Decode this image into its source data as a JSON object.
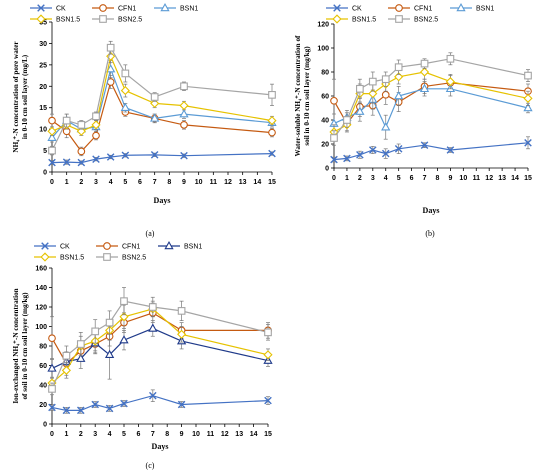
{
  "figure": {
    "panels": [
      "a",
      "b",
      "c"
    ],
    "panel_labels": [
      "(a)",
      "(b)",
      "(c)"
    ]
  },
  "chart_data": [
    {
      "id": "a",
      "type": "line",
      "panel_label": "(a)",
      "ylabel_lines": [
        "NH₄⁺-N concentration of pore water",
        "in 0-10 cm soil layer (mg/L)"
      ],
      "xlabel": "Days",
      "xlim": [
        0,
        15
      ],
      "ylim": [
        0,
        35
      ],
      "y_ticks": [
        0,
        5,
        10,
        15,
        20,
        25,
        30,
        35
      ],
      "x_ticks": [
        0,
        1,
        2,
        3,
        4,
        5,
        6,
        7,
        8,
        9,
        10,
        11,
        12,
        13,
        14,
        15
      ],
      "legend_placement": "top",
      "series": [
        {
          "name": "CK",
          "color": "#4472C4",
          "marker": "x",
          "x": [
            0,
            1,
            2,
            3,
            4,
            5,
            7,
            9,
            15
          ],
          "y": [
            2.2,
            2.3,
            2.2,
            3,
            3.5,
            3.9,
            4,
            3.8,
            4.3
          ],
          "err": [
            0.5,
            0.5,
            0.4,
            0.4,
            0.4,
            0.4,
            0.4,
            0.4,
            0.4
          ]
        },
        {
          "name": "CFN1",
          "color": "#C55A11",
          "marker": "circle",
          "x": [
            0,
            1,
            2,
            3,
            4,
            5,
            7,
            9,
            15
          ],
          "y": [
            12,
            9.5,
            4.8,
            8.5,
            21,
            14,
            12.5,
            11,
            9.2
          ],
          "err": [
            1.5,
            1.5,
            1,
            1,
            1.5,
            1,
            1,
            1,
            1
          ]
        },
        {
          "name": "BSN1",
          "color": "#5B9BD5",
          "marker": "triangle",
          "x": [
            0,
            1,
            2,
            3,
            4,
            5,
            7,
            9,
            15
          ],
          "y": [
            8,
            12,
            10,
            10.5,
            24,
            15,
            12.5,
            13.5,
            11.5
          ],
          "err": [
            1,
            1.5,
            1,
            1,
            2,
            1,
            1,
            1,
            1
          ]
        },
        {
          "name": "BSN1.5",
          "color": "#E6C200",
          "marker": "diamond",
          "x": [
            0,
            1,
            2,
            3,
            4,
            5,
            7,
            9,
            15
          ],
          "y": [
            9.5,
            11,
            9.5,
            11,
            27,
            19,
            16,
            15.5,
            12
          ],
          "err": [
            1,
            1,
            1,
            1,
            1.5,
            1.5,
            1,
            1,
            1
          ]
        },
        {
          "name": "BSN2.5",
          "color": "#A5A5A5",
          "marker": "square",
          "x": [
            0,
            1,
            2,
            3,
            4,
            5,
            7,
            9,
            15
          ],
          "y": [
            5,
            12,
            11,
            13,
            29,
            23,
            17.5,
            20,
            18
          ],
          "err": [
            1,
            1.5,
            1,
            1,
            1.5,
            2,
            1,
            1,
            2.5
          ]
        }
      ]
    },
    {
      "id": "b",
      "type": "line",
      "panel_label": "(b)",
      "ylabel_lines": [
        "Water-soluble NH₄⁺-N concentration of",
        "soil in 0-10 cm soil layer (mg/kg)"
      ],
      "xlabel": "Days",
      "xlim": [
        0,
        15
      ],
      "ylim": [
        0,
        120
      ],
      "y_ticks": [
        0,
        20,
        40,
        60,
        80,
        100,
        120
      ],
      "x_ticks": [
        0,
        1,
        2,
        3,
        4,
        5,
        6,
        7,
        8,
        9,
        10,
        11,
        12,
        13,
        14,
        15
      ],
      "legend_placement": "top",
      "series": [
        {
          "name": "CK",
          "color": "#4472C4",
          "marker": "x",
          "x": [
            0,
            1,
            2,
            3,
            4,
            5,
            7,
            9,
            15
          ],
          "y": [
            7,
            8,
            11,
            15,
            12,
            16,
            19,
            15,
            21
          ],
          "err": [
            2,
            2,
            3,
            3,
            4,
            4,
            2,
            2,
            5
          ]
        },
        {
          "name": "CFN1",
          "color": "#C55A11",
          "marker": "circle",
          "x": [
            0,
            1,
            2,
            3,
            4,
            5,
            7,
            9,
            15
          ],
          "y": [
            56,
            37,
            51,
            52,
            61,
            55,
            68,
            71,
            64
          ],
          "err": [
            18,
            6,
            8,
            8,
            8,
            8,
            6,
            6,
            6
          ]
        },
        {
          "name": "BSN1",
          "color": "#5B9BD5",
          "marker": "triangle",
          "x": [
            0,
            1,
            2,
            3,
            4,
            5,
            7,
            9,
            15
          ],
          "y": [
            37,
            42,
            47,
            57,
            34,
            60,
            66,
            66,
            50
          ],
          "err": [
            8,
            6,
            8,
            8,
            10,
            8,
            6,
            6,
            4
          ]
        },
        {
          "name": "BSN1.5",
          "color": "#E6C200",
          "marker": "diamond",
          "x": [
            0,
            1,
            2,
            3,
            4,
            5,
            7,
            9,
            15
          ],
          "y": [
            30,
            36,
            62,
            62,
            70,
            76,
            80,
            72,
            58
          ],
          "err": [
            6,
            6,
            8,
            8,
            6,
            6,
            6,
            6,
            6
          ]
        },
        {
          "name": "BSN2.5",
          "color": "#A5A5A5",
          "marker": "square",
          "x": [
            0,
            1,
            2,
            3,
            4,
            5,
            7,
            9,
            15
          ],
          "y": [
            25,
            40,
            66,
            72,
            74,
            84,
            87,
            91,
            77
          ],
          "err": [
            6,
            6,
            8,
            8,
            6,
            6,
            4,
            5,
            5
          ]
        }
      ]
    },
    {
      "id": "c",
      "type": "line",
      "panel_label": "(c)",
      "ylabel_lines": [
        "Ion-exchanged NH₄⁺-N concentration",
        "of soil in 0-10 cm soil layer (mg/kg)"
      ],
      "xlabel": "Days",
      "xlim": [
        0,
        15
      ],
      "ylim": [
        0,
        160
      ],
      "y_ticks": [
        0,
        20,
        40,
        60,
        80,
        100,
        120,
        140,
        160
      ],
      "x_ticks": [
        0,
        1,
        2,
        3,
        4,
        5,
        6,
        7,
        8,
        9,
        10,
        11,
        12,
        13,
        14,
        15
      ],
      "legend_placement": "top",
      "series": [
        {
          "name": "CK",
          "color": "#4472C4",
          "marker": "x",
          "x": [
            0,
            1,
            2,
            3,
            4,
            5,
            7,
            9,
            15
          ],
          "y": [
            17,
            14,
            14,
            20,
            16,
            21,
            29,
            20,
            24
          ],
          "err": [
            3,
            3,
            3,
            3,
            3,
            3,
            6,
            3,
            4
          ]
        },
        {
          "name": "CFN1",
          "color": "#C55A11",
          "marker": "circle",
          "x": [
            0,
            1,
            2,
            3,
            4,
            5,
            7,
            9,
            15
          ],
          "y": [
            88,
            62,
            75,
            82,
            90,
            104,
            114,
            96,
            96
          ],
          "err": [
            22,
            12,
            10,
            10,
            10,
            10,
            10,
            8,
            8
          ]
        },
        {
          "name": "BSN1",
          "color": "#1F3A8A",
          "marker": "triangle",
          "x": [
            0,
            1,
            2,
            3,
            4,
            5,
            7,
            9,
            15
          ],
          "y": [
            57,
            64,
            67,
            83,
            71,
            86,
            98,
            85,
            65
          ],
          "err": [
            10,
            10,
            10,
            10,
            25,
            10,
            8,
            8,
            6
          ]
        },
        {
          "name": "BSN1.5",
          "color": "#E6C200",
          "marker": "diamond",
          "x": [
            0,
            1,
            2,
            3,
            4,
            5,
            7,
            9,
            15
          ],
          "y": [
            42,
            55,
            80,
            85,
            96,
            110,
            118,
            92,
            71
          ],
          "err": [
            6,
            8,
            10,
            10,
            10,
            12,
            8,
            8,
            6
          ]
        },
        {
          "name": "BSN2.5",
          "color": "#A5A5A5",
          "marker": "square",
          "x": [
            0,
            1,
            2,
            3,
            4,
            5,
            7,
            9,
            15
          ],
          "y": [
            36,
            70,
            82,
            95,
            104,
            126,
            120,
            116,
            94
          ],
          "err": [
            6,
            10,
            12,
            12,
            12,
            14,
            10,
            10,
            8
          ]
        }
      ]
    }
  ]
}
